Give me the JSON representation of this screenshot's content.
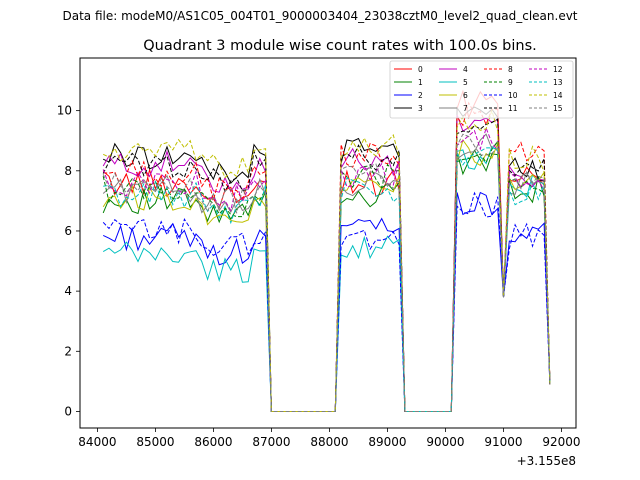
{
  "figure": {
    "suptitle": "Data file: modeM0/AS1C05_004T01_9000003404_23038cztM0_level2_quad_clean.evt"
  },
  "chart_data": {
    "type": "line",
    "title": "Quadrant 3 module wise count rates with 100.0s bins.",
    "xlabel": "",
    "ylabel": "",
    "x_offset_label": "+3.155e8",
    "xlim": [
      83700,
      92250
    ],
    "ylim": [
      -0.55,
      11.75
    ],
    "xticks": [
      84000,
      85000,
      86000,
      87000,
      88000,
      89000,
      90000,
      91000,
      92000
    ],
    "yticks": [
      0,
      2,
      4,
      6,
      8,
      10
    ],
    "xtick_labels": [
      "84000",
      "85000",
      "86000",
      "87000",
      "88000",
      "89000",
      "90000",
      "91000",
      "92000"
    ],
    "ytick_labels": [
      "0",
      "2",
      "4",
      "6",
      "8",
      "10"
    ],
    "grid": false,
    "legend_placement": "upper-right",
    "legend_columns": 4,
    "segments_x": [
      [
        84100,
        84200,
        84300,
        84400,
        84500,
        84600,
        84700,
        84800,
        84900,
        85000,
        85100,
        85200,
        85300,
        85400,
        85500,
        85600,
        85700,
        85800,
        85900,
        86000,
        86100,
        86200,
        86300,
        86400,
        86500,
        86600,
        86700,
        86800,
        86900
      ],
      [
        88200,
        88300,
        88400,
        88500,
        88600,
        88700,
        88800,
        88900,
        89000,
        89100,
        89200
      ],
      [
        90200,
        90300,
        90400,
        90500,
        90600,
        90700,
        90800,
        90900
      ],
      [
        91100,
        91200,
        91300,
        91400,
        91500,
        91600,
        91700
      ]
    ],
    "series": [
      {
        "name": "0",
        "color": "#ff0000",
        "dash": false,
        "base": [
          7.6,
          7.6,
          10.2,
          7.7
        ]
      },
      {
        "name": "1",
        "color": "#008000",
        "dash": false,
        "base": [
          7.0,
          7.2,
          8.3,
          7.4
        ]
      },
      {
        "name": "2",
        "color": "#0000ff",
        "dash": false,
        "base": [
          5.8,
          6.0,
          6.9,
          5.9
        ]
      },
      {
        "name": "3",
        "color": "#000000",
        "dash": false,
        "base": [
          8.5,
          8.7,
          9.8,
          8.0
        ]
      },
      {
        "name": "4",
        "color": "#bf00bf",
        "dash": false,
        "base": [
          8.2,
          8.3,
          9.6,
          7.9
        ]
      },
      {
        "name": "5",
        "color": "#00bfbf",
        "dash": false,
        "base": [
          5.2,
          5.4,
          8.4,
          7.5
        ]
      },
      {
        "name": "6",
        "color": "#bfbf00",
        "dash": false,
        "base": [
          7.1,
          7.5,
          8.6,
          7.6
        ]
      },
      {
        "name": "7",
        "color": "#808080",
        "dash": false,
        "base": [
          7.4,
          7.6,
          8.8,
          7.5
        ]
      },
      {
        "name": "8",
        "color": "#ff0000",
        "dash": true,
        "base": [
          7.9,
          8.5,
          9.9,
          8.5
        ]
      },
      {
        "name": "9",
        "color": "#008000",
        "dash": true,
        "base": [
          7.4,
          7.8,
          8.7,
          7.6
        ]
      },
      {
        "name": "10",
        "color": "#0000ff",
        "dash": true,
        "base": [
          6.0,
          5.7,
          6.9,
          5.8
        ]
      },
      {
        "name": "11",
        "color": "#000000",
        "dash": true,
        "base": [
          8.2,
          8.4,
          9.4,
          8.0
        ]
      },
      {
        "name": "12",
        "color": "#bf00bf",
        "dash": true,
        "base": [
          7.6,
          7.9,
          9.0,
          7.8
        ]
      },
      {
        "name": "13",
        "color": "#00bfbf",
        "dash": true,
        "base": [
          7.2,
          7.4,
          8.5,
          7.3
        ]
      },
      {
        "name": "14",
        "color": "#bfbf00",
        "dash": true,
        "base": [
          8.6,
          8.9,
          9.6,
          8.4
        ]
      },
      {
        "name": "15",
        "color": "#808080",
        "dash": true,
        "base": [
          7.5,
          7.8,
          8.9,
          7.7
        ]
      }
    ],
    "gap_x": [
      [
        87000,
        87100,
        88100
      ],
      [
        89300,
        89400,
        90100
      ],
      [
        91000
      ],
      [
        91800
      ]
    ],
    "gap_values": [
      0,
      0,
      3.8,
      0.9
    ]
  }
}
